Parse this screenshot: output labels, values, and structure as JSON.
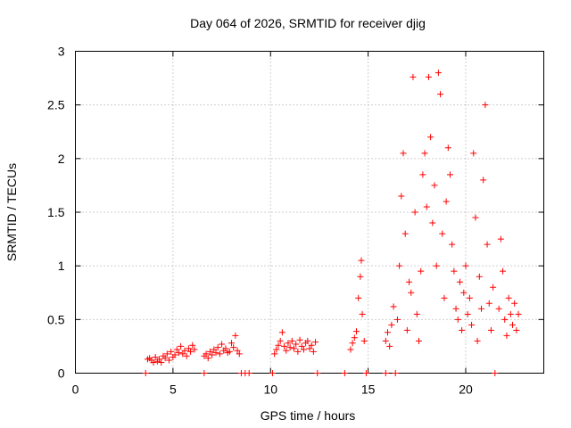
{
  "chart_data": {
    "type": "scatter",
    "title": "Day 064 of 2026, SRMTID for receiver djig",
    "xlabel": "GPS time / hours",
    "ylabel": "SRMTID / TECUs",
    "xlim": [
      0,
      24
    ],
    "ylim": [
      0,
      3
    ],
    "xticks": [
      0,
      5,
      10,
      15,
      20
    ],
    "xtick_labels": [
      "0",
      "5",
      "10",
      "15",
      "20"
    ],
    "yticks": [
      0,
      0.5,
      1,
      1.5,
      2,
      2.5,
      3
    ],
    "ytick_labels": [
      "0",
      "0.5",
      "1",
      "1.5",
      "2",
      "2.5",
      "3"
    ],
    "grid": true,
    "marker": "+",
    "marker_color": "#ff0000",
    "series": [
      {
        "name": "SRMTID",
        "points": [
          [
            3.6,
            0.0
          ],
          [
            3.7,
            0.13
          ],
          [
            3.8,
            0.14
          ],
          [
            3.9,
            0.12
          ],
          [
            4.0,
            0.1
          ],
          [
            4.1,
            0.15
          ],
          [
            4.2,
            0.11
          ],
          [
            4.3,
            0.13
          ],
          [
            4.4,
            0.1
          ],
          [
            4.5,
            0.16
          ],
          [
            4.6,
            0.14
          ],
          [
            4.7,
            0.18
          ],
          [
            4.8,
            0.12
          ],
          [
            4.9,
            0.2
          ],
          [
            5.0,
            0.15
          ],
          [
            5.1,
            0.17
          ],
          [
            5.2,
            0.22
          ],
          [
            5.3,
            0.19
          ],
          [
            5.4,
            0.25
          ],
          [
            5.5,
            0.18
          ],
          [
            5.6,
            0.21
          ],
          [
            5.7,
            0.16
          ],
          [
            5.8,
            0.23
          ],
          [
            5.9,
            0.2
          ],
          [
            6.0,
            0.26
          ],
          [
            6.1,
            0.22
          ],
          [
            6.6,
            0.0
          ],
          [
            6.6,
            0.16
          ],
          [
            6.7,
            0.18
          ],
          [
            6.8,
            0.14
          ],
          [
            6.9,
            0.2
          ],
          [
            7.0,
            0.17
          ],
          [
            7.1,
            0.22
          ],
          [
            7.2,
            0.19
          ],
          [
            7.3,
            0.24
          ],
          [
            7.4,
            0.18
          ],
          [
            7.5,
            0.27
          ],
          [
            7.6,
            0.21
          ],
          [
            7.7,
            0.23
          ],
          [
            7.8,
            0.19
          ],
          [
            7.9,
            0.2
          ],
          [
            8.0,
            0.28
          ],
          [
            8.1,
            0.24
          ],
          [
            8.2,
            0.35
          ],
          [
            8.3,
            0.21
          ],
          [
            8.4,
            0.18
          ],
          [
            8.5,
            0.0
          ],
          [
            8.7,
            0.0
          ],
          [
            8.9,
            0.0
          ],
          [
            10.1,
            0.0
          ],
          [
            10.2,
            0.18
          ],
          [
            10.3,
            0.22
          ],
          [
            10.4,
            0.26
          ],
          [
            10.5,
            0.3
          ],
          [
            10.6,
            0.38
          ],
          [
            10.7,
            0.25
          ],
          [
            10.8,
            0.21
          ],
          [
            10.9,
            0.28
          ],
          [
            11.0,
            0.24
          ],
          [
            11.1,
            0.3
          ],
          [
            11.2,
            0.23
          ],
          [
            11.3,
            0.27
          ],
          [
            11.4,
            0.2
          ],
          [
            11.5,
            0.31
          ],
          [
            11.6,
            0.25
          ],
          [
            11.7,
            0.22
          ],
          [
            11.8,
            0.28
          ],
          [
            11.9,
            0.3
          ],
          [
            12.0,
            0.23
          ],
          [
            12.1,
            0.26
          ],
          [
            12.2,
            0.2
          ],
          [
            12.3,
            0.29
          ],
          [
            12.4,
            0.0
          ],
          [
            13.8,
            0.0
          ],
          [
            14.1,
            0.22
          ],
          [
            14.2,
            0.28
          ],
          [
            14.3,
            0.33
          ],
          [
            14.4,
            0.39
          ],
          [
            14.5,
            0.7
          ],
          [
            14.6,
            0.9
          ],
          [
            14.65,
            1.05
          ],
          [
            14.7,
            0.55
          ],
          [
            14.8,
            0.3
          ],
          [
            14.9,
            0.0
          ],
          [
            15.9,
            0.0
          ],
          [
            15.9,
            0.3
          ],
          [
            16.0,
            0.38
          ],
          [
            16.1,
            0.25
          ],
          [
            16.2,
            0.45
          ],
          [
            16.3,
            0.62
          ],
          [
            16.4,
            0.0
          ],
          [
            16.5,
            0.5
          ],
          [
            16.6,
            1.0
          ],
          [
            16.7,
            1.65
          ],
          [
            16.8,
            2.05
          ],
          [
            16.9,
            1.3
          ],
          [
            17.0,
            0.4
          ],
          [
            17.1,
            0.85
          ],
          [
            17.2,
            0.75
          ],
          [
            17.3,
            2.76
          ],
          [
            17.4,
            1.5
          ],
          [
            17.5,
            0.55
          ],
          [
            17.6,
            0.3
          ],
          [
            17.7,
            0.95
          ],
          [
            17.8,
            1.85
          ],
          [
            17.9,
            2.05
          ],
          [
            18.0,
            1.55
          ],
          [
            18.1,
            2.76
          ],
          [
            18.2,
            2.2
          ],
          [
            18.3,
            1.4
          ],
          [
            18.4,
            1.75
          ],
          [
            18.5,
            1.0
          ],
          [
            18.6,
            2.8
          ],
          [
            18.7,
            2.6
          ],
          [
            18.8,
            1.3
          ],
          [
            18.9,
            0.7
          ],
          [
            19.0,
            1.6
          ],
          [
            19.1,
            2.1
          ],
          [
            19.2,
            1.85
          ],
          [
            19.3,
            1.2
          ],
          [
            19.4,
            0.95
          ],
          [
            19.5,
            0.6
          ],
          [
            19.6,
            0.5
          ],
          [
            19.7,
            0.85
          ],
          [
            19.8,
            0.4
          ],
          [
            19.9,
            0.75
          ],
          [
            20.0,
            1.0
          ],
          [
            20.1,
            0.55
          ],
          [
            20.2,
            0.7
          ],
          [
            20.3,
            0.45
          ],
          [
            20.4,
            2.05
          ],
          [
            20.5,
            1.45
          ],
          [
            20.6,
            0.3
          ],
          [
            20.7,
            0.9
          ],
          [
            20.8,
            0.6
          ],
          [
            20.9,
            1.8
          ],
          [
            21.0,
            2.5
          ],
          [
            21.1,
            1.2
          ],
          [
            21.2,
            0.65
          ],
          [
            21.3,
            0.4
          ],
          [
            21.4,
            0.8
          ],
          [
            21.5,
            0.0
          ],
          [
            21.7,
            0.6
          ],
          [
            21.8,
            1.25
          ],
          [
            21.9,
            0.95
          ],
          [
            22.0,
            0.5
          ],
          [
            22.1,
            0.35
          ],
          [
            22.2,
            0.7
          ],
          [
            22.3,
            0.55
          ],
          [
            22.4,
            0.45
          ],
          [
            22.5,
            0.65
          ],
          [
            22.6,
            0.4
          ],
          [
            22.7,
            0.55
          ]
        ]
      }
    ]
  }
}
